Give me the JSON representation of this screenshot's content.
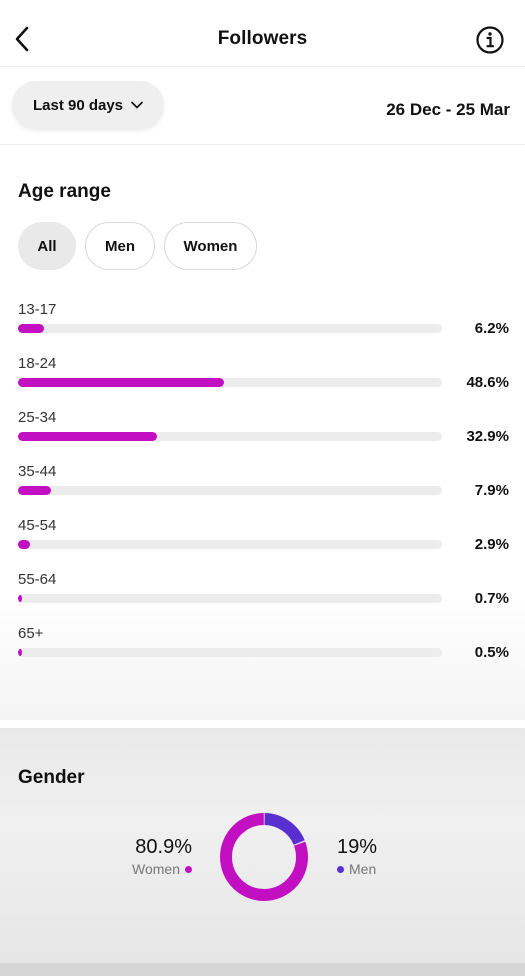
{
  "header": {
    "title": "Followers"
  },
  "filters": {
    "range_label": "Last 90 days",
    "date_range": "26 Dec - 25 Mar"
  },
  "age": {
    "title": "Age range",
    "segments": [
      "All",
      "Men",
      "Women"
    ],
    "selected_segment": "All",
    "rows": [
      {
        "label": "13-17",
        "pct_text": "6.2%",
        "value": 6.2
      },
      {
        "label": "18-24",
        "pct_text": "48.6%",
        "value": 48.6
      },
      {
        "label": "25-34",
        "pct_text": "32.9%",
        "value": 32.9
      },
      {
        "label": "35-44",
        "pct_text": "7.9%",
        "value": 7.9
      },
      {
        "label": "45-54",
        "pct_text": "2.9%",
        "value": 2.9
      },
      {
        "label": "55-64",
        "pct_text": "0.7%",
        "value": 0.7
      },
      {
        "label": "65+",
        "pct_text": "0.5%",
        "value": 0.5
      }
    ]
  },
  "gender": {
    "title": "Gender",
    "women": {
      "pct_text": "80.9%",
      "label": "Women",
      "value": 80.9
    },
    "men": {
      "pct_text": "19%",
      "label": "Men",
      "value": 19
    }
  },
  "colors": {
    "accent": "#c20fc2",
    "men": "#5a2fd0",
    "track": "#ececec"
  },
  "icons": {
    "back": "chevron-left-icon",
    "info": "info-icon",
    "dropdown": "chevron-down-icon"
  }
}
